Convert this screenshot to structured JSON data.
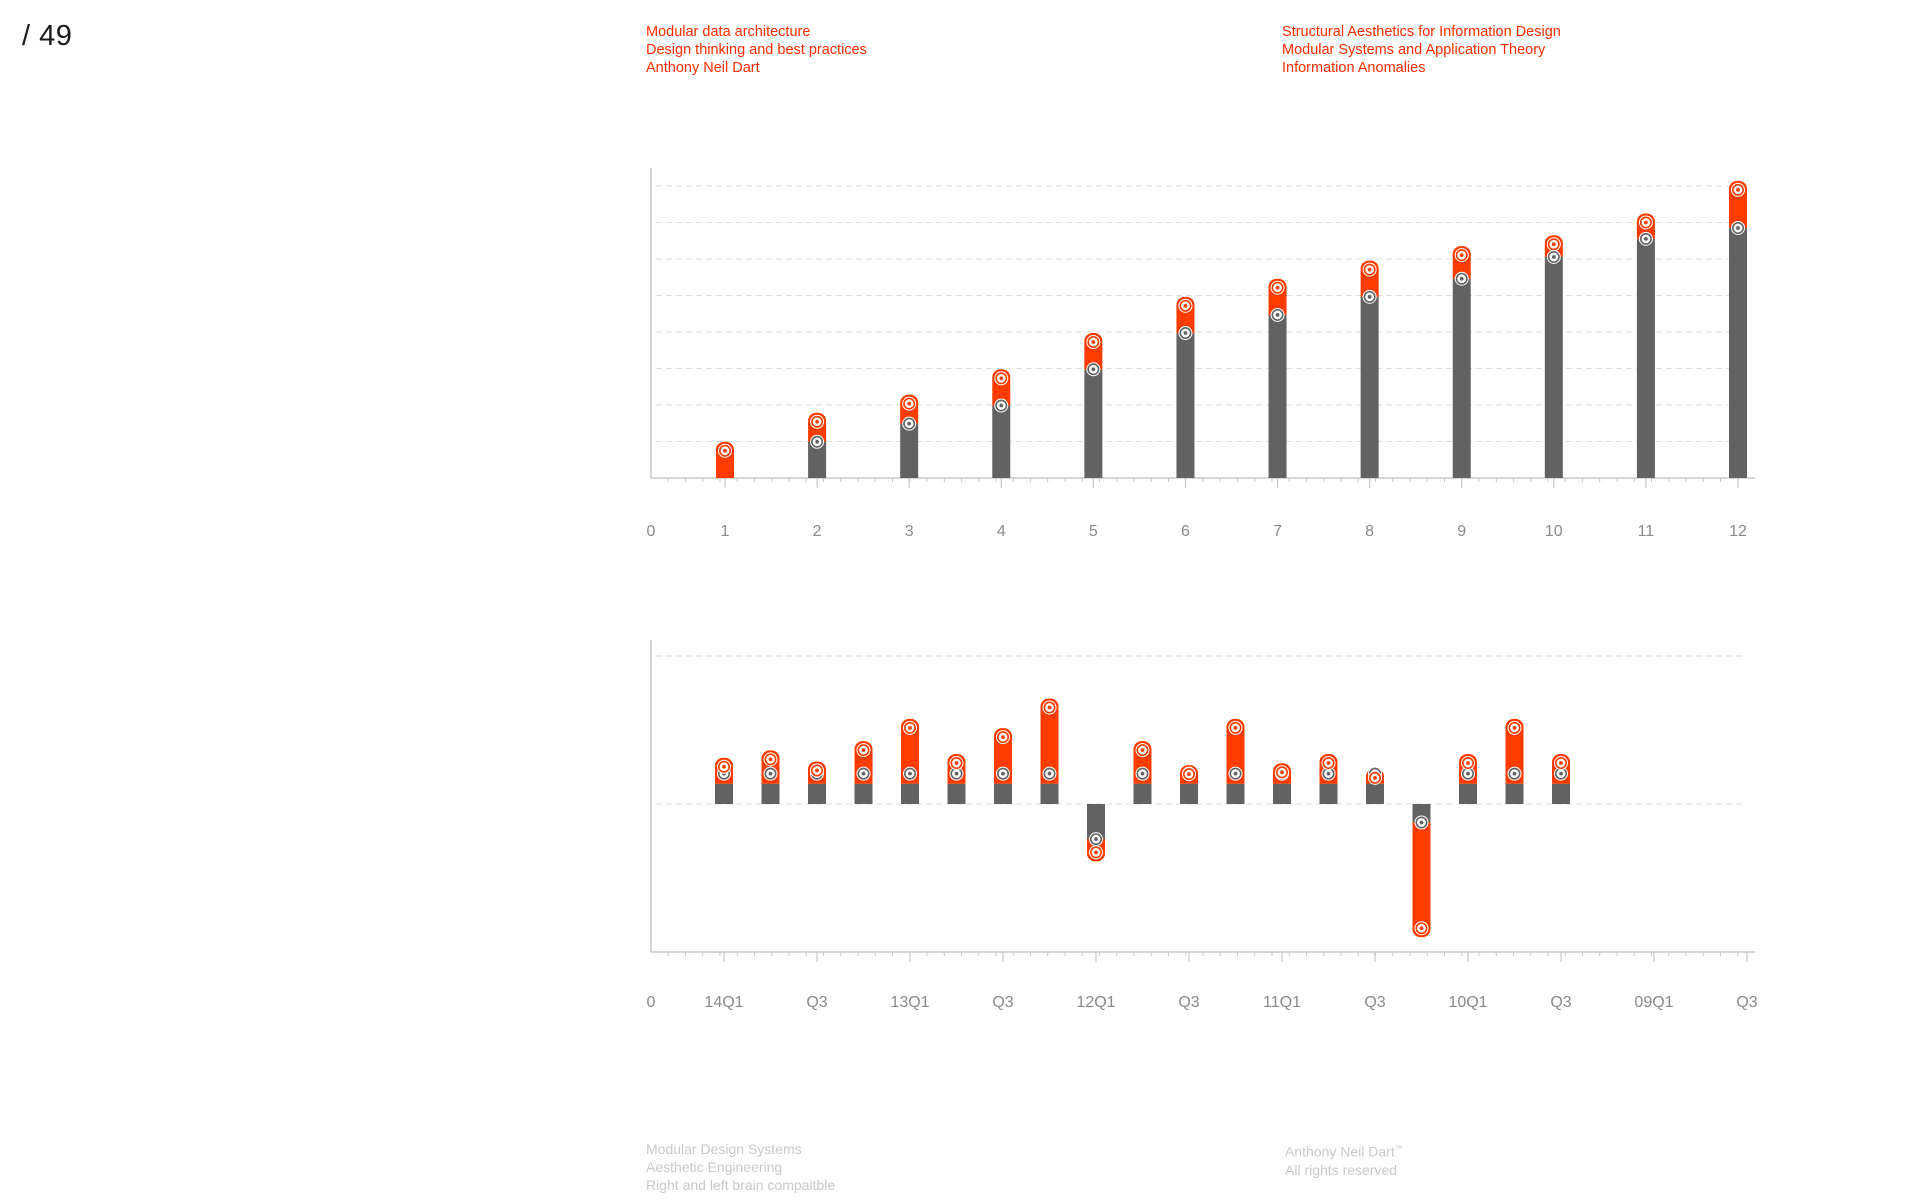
{
  "page": {
    "number": "/ 49"
  },
  "header_left": [
    "Modular data architecture",
    "Design thinking and best practices",
    "Anthony Neil Dart"
  ],
  "header_right": [
    "Structural Aesthetics for Information Design",
    "Modular Systems and Application Theory",
    "Information Anomalies"
  ],
  "footer_left": [
    "Modular Design Systems",
    "Aesthetic Engineering",
    "Right and left brain compaitble"
  ],
  "footer_right": {
    "name": "Anthony Neil Dart",
    "trademark": "™",
    "rights": "All rights reserved"
  },
  "colors": {
    "accent": "#ff3c00",
    "dark": "#626262",
    "axis": "#c8c8c8",
    "grid": "#dedede",
    "label": "#8a8a8a"
  },
  "chart_data": [
    {
      "type": "bar",
      "variant": "stacked-range",
      "categories": [
        "1",
        "2",
        "3",
        "4",
        "5",
        "6",
        "7",
        "8",
        "9",
        "10",
        "11",
        "12"
      ],
      "x_origin_label": "0",
      "series": [
        {
          "values": [
            0,
            1,
            1.5,
            2,
            3,
            4,
            4.5,
            5,
            5.5,
            6.1,
            6.6,
            6.9
          ]
        },
        {
          "values": [
            1,
            1.8,
            2.3,
            3,
            4,
            5,
            5.5,
            6,
            6.4,
            6.7,
            7.3,
            8.2
          ]
        }
      ],
      "ylim": [
        0,
        8.5
      ],
      "gridlines": 8,
      "grid": true,
      "legend": "none",
      "title": "",
      "xlabel": "",
      "ylabel": ""
    },
    {
      "type": "bar",
      "variant": "diverging-range",
      "x_origin_label": "0",
      "tick_labels": [
        "14Q1",
        "Q3",
        "13Q1",
        "Q3",
        "12Q1",
        "Q3",
        "11Q1",
        "Q3",
        "10Q1",
        "Q3",
        "09Q1",
        "Q3"
      ],
      "series": [
        {
          "values": [
            0.55,
            0.55,
            0.55,
            0.55,
            0.55,
            0.55,
            0.55,
            0.55,
            -0.95,
            0.55,
            0.55,
            0.55,
            0.55,
            0.55,
            0.55,
            -0.5,
            0.55,
            0.55,
            0.55
          ]
        },
        {
          "values": [
            1.25,
            1.45,
            1.15,
            1.7,
            2.3,
            1.35,
            2.05,
            2.85,
            -1.55,
            1.7,
            1.05,
            2.3,
            1.1,
            1.35,
            0.95,
            -3.6,
            1.35,
            2.3,
            1.35
          ]
        }
      ],
      "ylim": [
        -4,
        4
      ],
      "grid": true,
      "legend": "none",
      "title": "",
      "xlabel": "",
      "ylabel": ""
    }
  ]
}
